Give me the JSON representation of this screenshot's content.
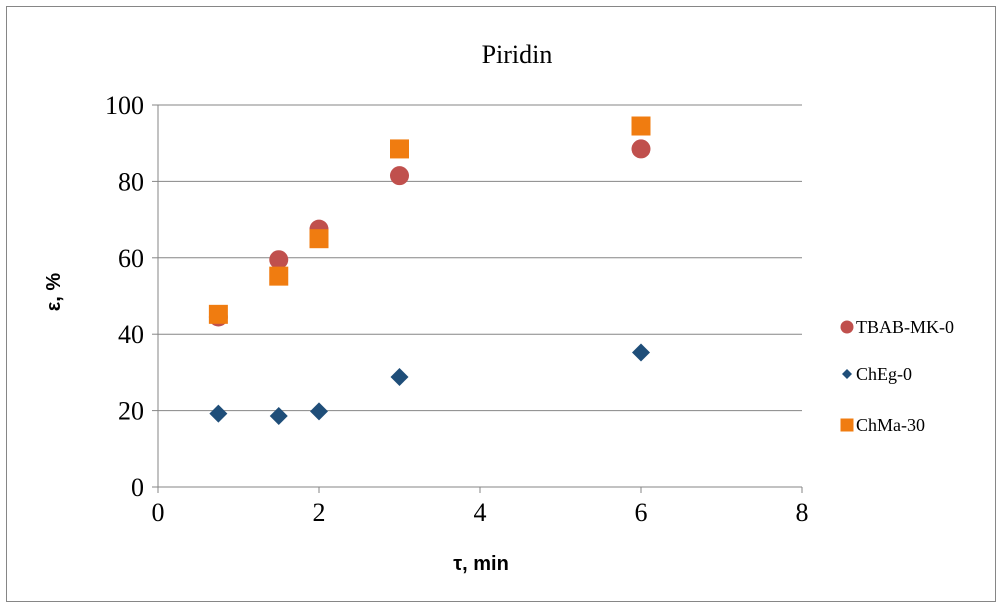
{
  "chart_data": {
    "type": "scatter",
    "title": "Piridin",
    "xlabel": "τ, min",
    "ylabel": "ε, %",
    "xlim": [
      0,
      8
    ],
    "ylim": [
      0,
      100
    ],
    "x_ticks": [
      0,
      2,
      4,
      6,
      8
    ],
    "y_ticks": [
      0,
      20,
      40,
      60,
      80,
      100
    ],
    "grid": "horizontal",
    "legend_position": "right",
    "series": [
      {
        "name": "TBAB-MK-0",
        "marker": "circle",
        "color": "#c0504d",
        "points": [
          [
            0.75,
            44.5
          ],
          [
            1.5,
            59.5
          ],
          [
            2,
            67.5
          ],
          [
            3,
            81.5
          ],
          [
            6,
            88.5
          ]
        ]
      },
      {
        "name": "ChEg-0",
        "marker": "diamond",
        "color": "#1f4e79",
        "points": [
          [
            0.75,
            19.2
          ],
          [
            1.5,
            18.6
          ],
          [
            2,
            19.8
          ],
          [
            3,
            28.8
          ],
          [
            6,
            35.2
          ]
        ]
      },
      {
        "name": "ChMa-30",
        "marker": "square",
        "color": "#f07c10",
        "points": [
          [
            0.75,
            45.2
          ],
          [
            1.5,
            55.2
          ],
          [
            2,
            65
          ],
          [
            3,
            88.5
          ],
          [
            6,
            94.5
          ]
        ]
      }
    ]
  }
}
